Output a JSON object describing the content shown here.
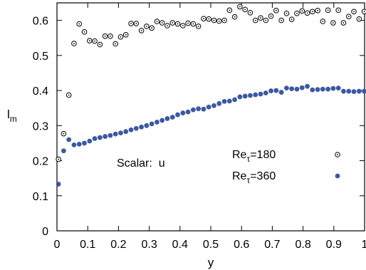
{
  "chart_data": {
    "type": "scatter",
    "xlabel": "y",
    "ylabel": "l",
    "ylabel_sub": "m",
    "xlim": [
      0,
      1
    ],
    "ylim": [
      0,
      0.65
    ],
    "grid": false,
    "legend_position": "center-right",
    "x_ticks": [
      "0",
      "0.1",
      "0.2",
      "0.3",
      "0.4",
      "0.5",
      "0.6",
      "0.7",
      "0.8",
      "0.9",
      "1"
    ],
    "y_ticks": [
      "0",
      "0.1",
      "0.2",
      "0.3",
      "0.4",
      "0.5",
      "0.6"
    ],
    "x_tick_values": [
      0,
      0.1,
      0.2,
      0.3,
      0.4,
      0.5,
      0.6,
      0.7,
      0.8,
      0.9,
      1.0
    ],
    "y_tick_values": [
      0,
      0.1,
      0.2,
      0.3,
      0.4,
      0.5,
      0.6
    ],
    "annotation": "Scalar:  u",
    "series": [
      {
        "name": "Re",
        "name_sub": "τ",
        "name_suffix": "=180",
        "marker": "open-circle-dot",
        "color": "#000000",
        "x": [
          0.0049,
          0.0217,
          0.0386,
          0.0554,
          0.0723,
          0.0891,
          0.106,
          0.1228,
          0.1397,
          0.1565,
          0.1734,
          0.1902,
          0.2071,
          0.2239,
          0.2408,
          0.2576,
          0.2745,
          0.2913,
          0.3082,
          0.325,
          0.3419,
          0.3587,
          0.3756,
          0.3924,
          0.4093,
          0.4261,
          0.443,
          0.4598,
          0.4767,
          0.4935,
          0.5104,
          0.5272,
          0.5441,
          0.5609,
          0.5778,
          0.5946,
          0.6115,
          0.6283,
          0.6452,
          0.662,
          0.6789,
          0.6957,
          0.7126,
          0.7294,
          0.7463,
          0.7631,
          0.78,
          0.7968,
          0.8137,
          0.8305,
          0.8474,
          0.8642,
          0.8811,
          0.8979,
          0.9148,
          0.9316,
          0.9485,
          0.9653,
          0.9822,
          0.999
        ],
        "y": [
          0.204,
          0.277,
          0.387,
          0.534,
          0.59,
          0.567,
          0.542,
          0.541,
          0.531,
          0.555,
          0.555,
          0.533,
          0.553,
          0.559,
          0.591,
          0.591,
          0.571,
          0.583,
          0.578,
          0.597,
          0.593,
          0.585,
          0.593,
          0.59,
          0.585,
          0.592,
          0.59,
          0.583,
          0.605,
          0.604,
          0.6,
          0.598,
          0.6,
          0.629,
          0.61,
          0.639,
          0.631,
          0.622,
          0.6,
          0.607,
          0.6,
          0.612,
          0.628,
          0.6,
          0.62,
          0.603,
          0.62,
          0.627,
          0.621,
          0.625,
          0.628,
          0.597,
          0.629,
          0.593,
          0.629,
          0.593,
          0.611,
          0.625,
          0.604,
          0.625
        ]
      },
      {
        "name": "Re",
        "name_sub": "τ",
        "name_suffix": "=360",
        "marker": "filled-circle",
        "color": "#3b58a2",
        "x": [
          0.0049,
          0.0217,
          0.0386,
          0.0554,
          0.0723,
          0.0891,
          0.106,
          0.1228,
          0.1397,
          0.1565,
          0.1734,
          0.1902,
          0.2071,
          0.2239,
          0.2408,
          0.2576,
          0.2745,
          0.2913,
          0.3082,
          0.325,
          0.3419,
          0.3587,
          0.3756,
          0.3924,
          0.4093,
          0.4261,
          0.443,
          0.4598,
          0.4767,
          0.4935,
          0.5104,
          0.5272,
          0.5441,
          0.5609,
          0.5778,
          0.5946,
          0.6115,
          0.6283,
          0.6452,
          0.662,
          0.6789,
          0.6957,
          0.7126,
          0.7294,
          0.7463,
          0.7631,
          0.78,
          0.7968,
          0.8137,
          0.8305,
          0.8474,
          0.8642,
          0.8811,
          0.8979,
          0.9148,
          0.9316,
          0.9485,
          0.9653,
          0.9822,
          0.999
        ],
        "y": [
          0.133,
          0.228,
          0.26,
          0.245,
          0.247,
          0.25,
          0.256,
          0.263,
          0.266,
          0.269,
          0.272,
          0.276,
          0.279,
          0.283,
          0.288,
          0.292,
          0.296,
          0.3,
          0.305,
          0.31,
          0.315,
          0.32,
          0.324,
          0.331,
          0.336,
          0.339,
          0.345,
          0.348,
          0.347,
          0.353,
          0.357,
          0.363,
          0.369,
          0.37,
          0.374,
          0.382,
          0.384,
          0.386,
          0.388,
          0.39,
          0.393,
          0.399,
          0.4,
          0.395,
          0.407,
          0.405,
          0.404,
          0.408,
          0.412,
          0.402,
          0.403,
          0.404,
          0.404,
          0.406,
          0.407,
          0.398,
          0.398,
          0.397,
          0.398,
          0.398
        ]
      }
    ]
  }
}
